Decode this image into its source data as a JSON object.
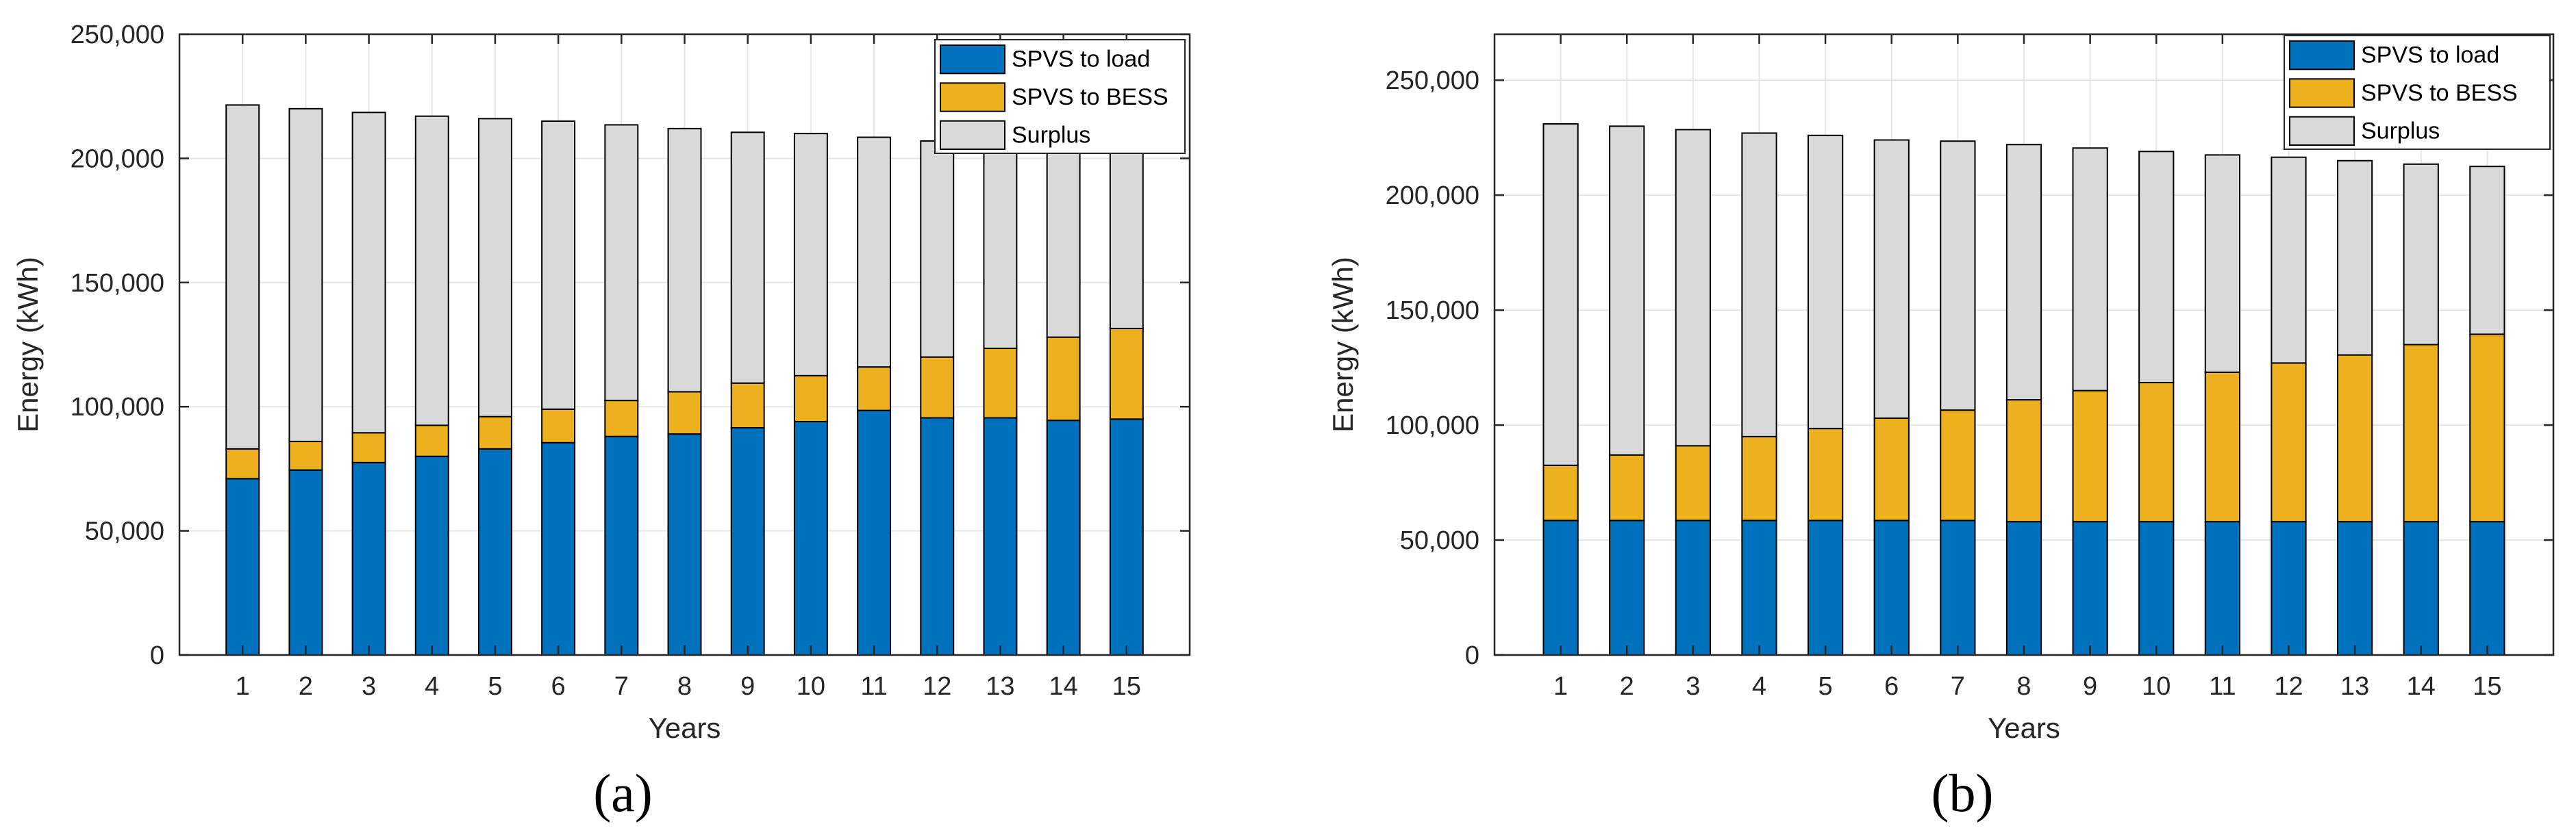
{
  "colors": {
    "load": "#0072BD",
    "bess": "#EDB120",
    "surplus": "#D9D9D9",
    "grid": "#E6E6E6",
    "axis": "#262626",
    "edge": "#000000"
  },
  "chart_data": [
    {
      "type": "bar",
      "stacked": true,
      "panel_label": "(a)",
      "xlabel": "Years",
      "ylabel": "Energy (kWh)",
      "ylim": [
        0,
        250000
      ],
      "yticks": [
        0,
        50000,
        100000,
        150000,
        200000,
        250000
      ],
      "ytick_labels": [
        "0",
        "50,000",
        "100,000",
        "150,000",
        "200,000",
        "250,000"
      ],
      "grid": true,
      "legend_position": "top-right",
      "categories": [
        "1",
        "2",
        "3",
        "4",
        "5",
        "6",
        "7",
        "8",
        "9",
        "10",
        "11",
        "12",
        "13",
        "14",
        "15"
      ],
      "series": [
        {
          "name": "SPVS to load",
          "color_key": "load",
          "values": [
            71000,
            74500,
            77500,
            80000,
            83000,
            85500,
            88000,
            89000,
            91500,
            94000,
            98500,
            95500,
            95500,
            94500,
            95000
          ]
        },
        {
          "name": "SPVS to BESS",
          "color_key": "bess",
          "values": [
            12000,
            11500,
            12000,
            12500,
            13000,
            13500,
            14500,
            17000,
            18000,
            18500,
            17500,
            24500,
            28000,
            33500,
            36500
          ]
        },
        {
          "name": "Surplus",
          "color_key": "surplus",
          "values": [
            138500,
            134000,
            129000,
            124500,
            120000,
            116000,
            111000,
            106000,
            101000,
            97500,
            92500,
            87000,
            82500,
            76500,
            72000
          ]
        }
      ]
    },
    {
      "type": "bar",
      "stacked": true,
      "panel_label": "(b)",
      "xlabel": "Years",
      "ylabel": "Energy (kWh)",
      "ylim": [
        0,
        270000
      ],
      "yticks": [
        0,
        50000,
        100000,
        150000,
        200000,
        250000
      ],
      "ytick_labels": [
        "0",
        "50,000",
        "100,000",
        "150,000",
        "200,000",
        "250,000"
      ],
      "grid": true,
      "legend_position": "top-right",
      "categories": [
        "1",
        "2",
        "3",
        "4",
        "5",
        "6",
        "7",
        "8",
        "9",
        "10",
        "11",
        "12",
        "13",
        "14",
        "15"
      ],
      "series": [
        {
          "name": "SPVS to load",
          "color_key": "load",
          "values": [
            58500,
            58500,
            58500,
            58500,
            58500,
            58500,
            58500,
            58000,
            58000,
            58000,
            58000,
            58000,
            58000,
            58000,
            58000
          ]
        },
        {
          "name": "SPVS to BESS",
          "color_key": "bess",
          "values": [
            24000,
            28500,
            32500,
            36500,
            40000,
            44500,
            48000,
            53000,
            57000,
            60500,
            65000,
            69000,
            72500,
            77000,
            81500
          ]
        },
        {
          "name": "Surplus",
          "color_key": "surplus",
          "values": [
            148500,
            143000,
            137500,
            132000,
            127500,
            121000,
            117000,
            111000,
            105500,
            100500,
            94500,
            89500,
            84500,
            78500,
            73000
          ]
        }
      ]
    }
  ]
}
